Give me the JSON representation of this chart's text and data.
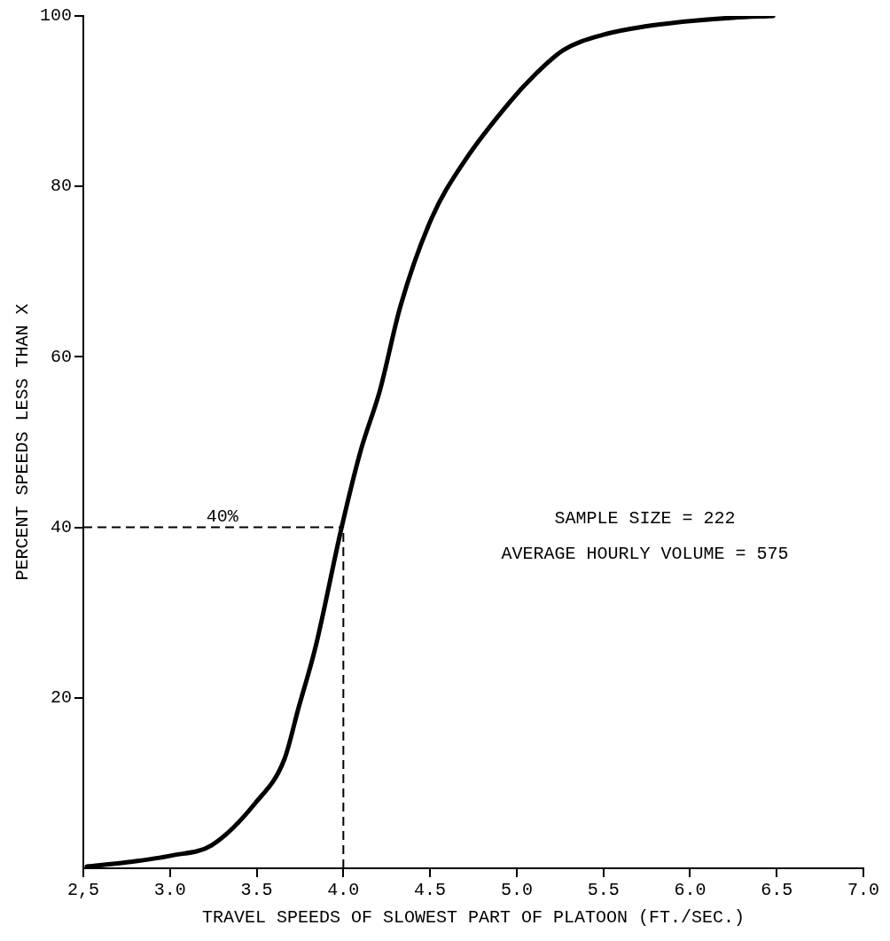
{
  "chart_data": {
    "type": "line",
    "xlabel": "TRAVEL SPEEDS OF SLOWEST PART OF PLATOON (FT./SEC.)",
    "ylabel": "PERCENT SPEEDS LESS THAN X",
    "series": [
      {
        "color": "#000000",
        "x": [
          2.52,
          2.75,
          3.01,
          3.24,
          3.49,
          3.66,
          3.74,
          3.84,
          3.99,
          4.1,
          4.21,
          4.33,
          4.51,
          4.7,
          4.96,
          5.1,
          5.27,
          5.5,
          5.75,
          6.0,
          6.25,
          6.48
        ],
        "values": [
          0.2,
          0.7,
          1.5,
          2.7,
          7.6,
          12.8,
          18.7,
          26,
          40,
          49,
          56,
          66,
          76.3,
          83,
          89.9,
          93,
          96,
          97.8,
          98.8,
          99.4,
          99.8,
          100
        ]
      }
    ],
    "xlim": [
      2.5,
      7
    ],
    "xticks": [
      {
        "value": 2.5,
        "label": "2,5"
      },
      {
        "value": 3,
        "label": "3.0"
      },
      {
        "value": 3.5,
        "label": "3.5"
      },
      {
        "value": 4,
        "label": "4.0"
      },
      {
        "value": 4.5,
        "label": "4.5"
      },
      {
        "value": 5,
        "label": "5.0"
      },
      {
        "value": 5.5,
        "label": "5.5"
      },
      {
        "value": 6,
        "label": "6.0"
      },
      {
        "value": 6.5,
        "label": "6.5"
      },
      {
        "value": 7,
        "label": "7.0"
      }
    ],
    "ylim": [
      0,
      100
    ],
    "yticks": [
      20,
      40,
      60,
      80,
      100
    ],
    "ref_lines": [
      {
        "axis": "y",
        "value": 40,
        "label": "40%",
        "line_style": "dashed"
      },
      {
        "axis": "x",
        "value": 4,
        "line_style": "dashed"
      }
    ],
    "annotations": [
      "SAMPLE SIZE = 222",
      "AVERAGE HOURLY VOLUME = 575"
    ],
    "grid": false,
    "legend": false,
    "marker": "none",
    "line_style": "solid"
  }
}
